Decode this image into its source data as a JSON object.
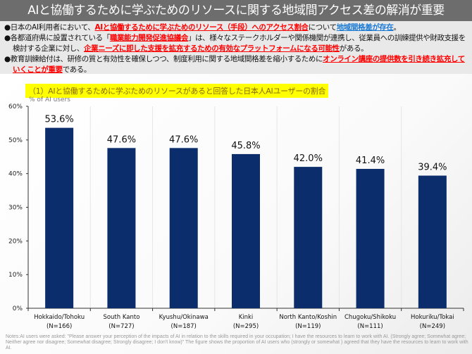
{
  "title": "AIと協働するために学ぶためのリソースに関する地域間アクセス差の解消が重要",
  "bullets": [
    [
      {
        "t": "●日本のAI利用者において、"
      },
      {
        "t": "AIと協働するために学ぶためのリソース（手段）へのアクセス割合",
        "s": "red"
      },
      {
        "t": "について"
      },
      {
        "t": "地域間格差が存在",
        "s": "blue"
      },
      {
        "t": "。"
      }
    ],
    [
      {
        "t": "●各都道府県に設置されている「"
      },
      {
        "t": "職業能力開発促進協議会",
        "s": "red"
      },
      {
        "t": "」は、様々なステークホルダーや関係機関が連携し、従業員への訓練提供や財政支援を検討する企業に対し、"
      },
      {
        "t": "企業ニーズに即した支援を拡充するための有効なプラットフォームになる可能性",
        "s": "red"
      },
      {
        "t": "がある。"
      }
    ],
    [
      {
        "t": "●教育訓練給付は、研修の質と有効性を確保しつつ、制度利用に関する地域間格差を縮小するために"
      },
      {
        "t": "オンライン講座の提供数を引き続き拡充していくことが重要",
        "s": "red"
      },
      {
        "t": "である。"
      }
    ]
  ],
  "colors": {
    "bar": "#0c2d6b",
    "title_bg": "#6d6d6d",
    "red": "#ff0000",
    "blue": "#1a7ad4",
    "highlight": "#ffff00"
  },
  "chart_data": {
    "type": "bar",
    "title": "（1）AIと協働するために学ぶためのリソースがあると回答した日本人AIユーザーの割合",
    "ylabel": "% of AI users",
    "categories": [
      "Hokkaido/Tohoku",
      "South Kanto",
      "Kyushu/Okinawa",
      "Kinki",
      "North Kanto/Koshin",
      "Chugoku/Shikoku",
      "Hokuriku/Tokai"
    ],
    "sample_sizes": [
      "(N=166)",
      "(N=727)",
      "(N=187)",
      "(N=295)",
      "(N=119)",
      "(N=111)",
      "(N=249)"
    ],
    "values": [
      53.6,
      47.6,
      47.6,
      45.8,
      42.0,
      41.4,
      39.4
    ],
    "data_labels": [
      "53.6%",
      "47.6%",
      "47.6%",
      "45.8%",
      "42.0%",
      "41.4%",
      "39.4%"
    ],
    "ylim": [
      0,
      60
    ],
    "yticks": [
      "0%",
      "10%",
      "20%",
      "30%",
      "40%",
      "50%",
      "60%"
    ],
    "grid": false
  },
  "notes": "Notes:AI users  were asked: \"Please answer your perception of the impacts of AI in relation to the skills required in your occupation; I have the resources to learn to work with AI. (Strongly agree; Somewhat agree; Neither agree nor disagree; Somewhat disagree; Strongly disagree; I don't know)\" The figure shows the proportion of AI users who (strongly or somewhat ) agreed that they have the resources to learn to work with AI."
}
